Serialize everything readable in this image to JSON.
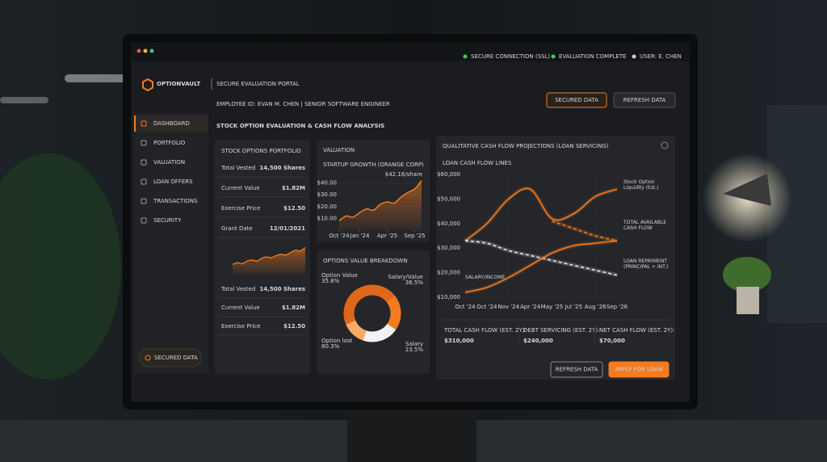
{
  "status_bar": {
    "items": [
      "SECURE CONNECTION (SSL)",
      "EVALUATION COMPLETE",
      "USER: E. CHEN"
    ]
  },
  "header": {
    "brand": "OPTIONVAULT",
    "portal": "SECURE EVALUATION PORTAL",
    "buttons": [
      "SECURED DATA",
      "REFRESH DATA"
    ]
  },
  "sidebar": {
    "items": [
      "DASHBOARD",
      "PORTFOLIO",
      "VALUATION",
      "LOAN OFFERS",
      "TRANSACTIONS",
      "SECURITY"
    ],
    "badge": "SECURED DATA"
  },
  "employee": "EMPLOYEE ID: EVAN M. CHEN | SENIOR SOFTWARE ENGINEER",
  "title": "STOCK OPTION EVALUATION & CASH FLOW ANALYSIS",
  "portfolio": {
    "title": "STOCK OPTIONS PORTFOLIO",
    "rows": [
      [
        "Total Vested",
        "14,500 Shares"
      ],
      [
        "Current Value",
        "$1.82M"
      ],
      [
        "Exercise Price",
        "$12.50"
      ],
      [
        "Grant Date",
        "12/01/2021"
      ]
    ],
    "chart": {
      "type": "line",
      "color": "#f47b20",
      "values": [
        3,
        3.5,
        3.2,
        4,
        4.3,
        4,
        4.8,
        5.2,
        5,
        5.6,
        6,
        5.8,
        6.5,
        7.2,
        7,
        8
      ],
      "ylim": [
        0,
        10
      ]
    },
    "rows_lower": [
      [
        "Total Vested",
        "14,500 Shares"
      ],
      [
        "Current Value",
        "$1.82M"
      ],
      [
        "Exercise Price",
        "$12.50"
      ]
    ]
  },
  "valuation": {
    "title": "VALUATION",
    "chart": {
      "type": "line",
      "subtitle": "STARTUP GROWTH (ORANGE CORP)",
      "annotation": "$42.16/share",
      "color": "#f47b20",
      "x": [
        0,
        1,
        2,
        3,
        4,
        5,
        6,
        7,
        8,
        9,
        10,
        11,
        12
      ],
      "values": [
        8,
        12,
        11,
        15,
        18,
        17,
        22,
        24,
        23,
        28,
        32,
        35,
        42.16
      ],
      "xlim": [
        0,
        12
      ],
      "xticks": [
        {
          "value": 0,
          "label": "Oct '24"
        },
        {
          "value": 3,
          "label": "Jan '24"
        },
        {
          "value": 7,
          "label": "Apr '25"
        },
        {
          "value": 11,
          "label": "Sep '25"
        }
      ],
      "ylim": [
        0,
        50
      ],
      "yticks": [
        {
          "value": 10,
          "label": "$10.00"
        },
        {
          "value": 20,
          "label": "$20.00"
        },
        {
          "value": 30,
          "label": "$30.00"
        },
        {
          "value": 40,
          "label": "$40.00"
        }
      ]
    }
  },
  "breakdown": {
    "title": "OPTIONS VALUE BREAKDOWN",
    "chart": {
      "type": "pie",
      "categories": [
        "Option Value",
        "Salary/Value",
        "Salary",
        "Option lost"
      ],
      "values": [
        35.8,
        36.5,
        23.5,
        80.3
      ],
      "value_labels": [
        "35.8%",
        "36.5%",
        "23.5%",
        "80.3%"
      ],
      "colors": [
        "#f47b20",
        "#f2f2f2",
        "#f9a866",
        "#e0661a"
      ]
    }
  },
  "cashflow": {
    "title": "QUALITATIVE CASH FLOW PROJECTIONS (LOAN SERVICING)",
    "chart": {
      "type": "line",
      "subtitle": "LOAN CASH FLOW LINES",
      "categories": [
        "Oct '24",
        "Oct '24",
        "Nov '24",
        "Apr '24",
        "May '25",
        "Jul '25",
        "Aug '26",
        "Sep '26"
      ],
      "series": [
        {
          "name": "Stock Option Liquidity (Est.)",
          "color": "#f47b20",
          "values": [
            33000,
            40000,
            50000,
            54000,
            42000,
            44000,
            51000,
            54000
          ]
        },
        {
          "name": "TOTAL AVAILABLE CASH FLOW",
          "color": "#f47b20",
          "dashed": true,
          "values": [
            null,
            null,
            null,
            null,
            41000,
            38000,
            35000,
            33000
          ]
        },
        {
          "name": "LOAN REPAYMENT (PRINCIPAL + INT.)",
          "color": "#e8e8e8",
          "dashed": true,
          "values": [
            33000,
            32000,
            29000,
            27000,
            25000,
            23000,
            21000,
            19000
          ]
        },
        {
          "name": "SALARY/INCOME",
          "color": "#f47b20",
          "values": [
            12000,
            14000,
            18000,
            23000,
            28000,
            31000,
            32000,
            33000
          ]
        }
      ],
      "ylim": [
        10000,
        60000
      ],
      "yticks": [
        {
          "value": 10000,
          "label": "$10,000"
        },
        {
          "value": 20000,
          "label": "$20,000"
        },
        {
          "value": 30000,
          "label": "$30,000"
        },
        {
          "value": 40000,
          "label": "$40,000"
        },
        {
          "value": 50000,
          "label": "$50,000"
        },
        {
          "value": 60000,
          "label": "$60,000"
        }
      ]
    }
  },
  "summary": [
    {
      "label": "TOTAL CASH FLOW (EST. 2Y):",
      "value": "$310,000"
    },
    {
      "label": "DEBT SERVICING (EST. 2Y):",
      "value": "$240,000"
    },
    {
      "label": "NET CASH FLOW (EST. 2Y):",
      "value": "$70,000"
    }
  ],
  "actions": [
    "REFRESH DATA",
    "APPLY FOR LOAN"
  ]
}
